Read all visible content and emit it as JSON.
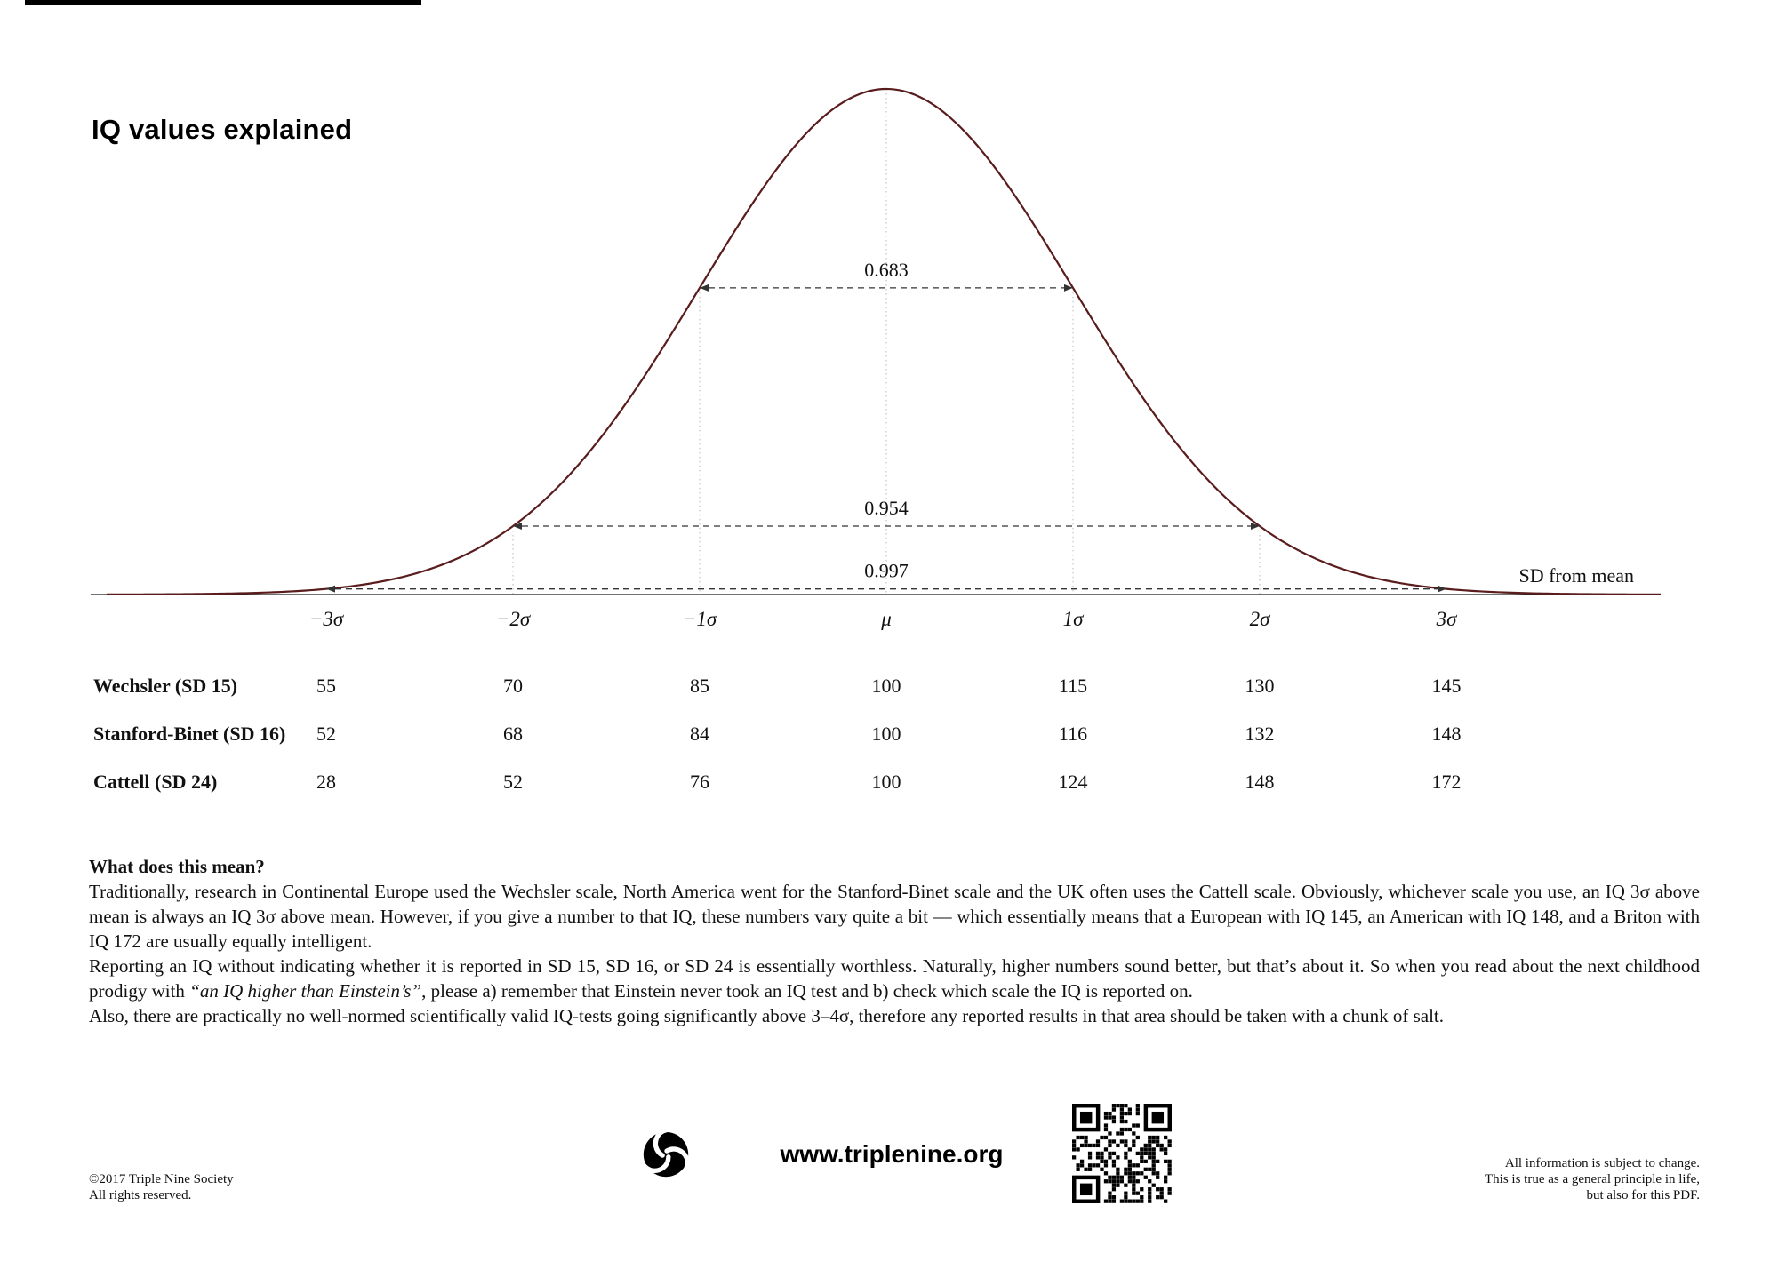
{
  "page": {
    "title": "IQ values explained"
  },
  "chart": {
    "curve_color": "#5a1c1c",
    "sd_axis_label": "SD from mean",
    "sigma_labels": [
      "−3σ",
      "−2σ",
      "−1σ",
      "μ",
      "1σ",
      "2σ",
      "3σ"
    ],
    "intervals": [
      {
        "label": "0.683",
        "sigma": 1
      },
      {
        "label": "0.954",
        "sigma": 2
      },
      {
        "label": "0.997",
        "sigma": 3
      }
    ]
  },
  "chart_data": {
    "type": "line",
    "title": "IQ values explained",
    "curve": "normal (Gaussian) distribution",
    "x_axis_label": "SD from mean",
    "x_tick_labels": [
      "−3σ",
      "−2σ",
      "−1σ",
      "μ",
      "1σ",
      "2σ",
      "3σ"
    ],
    "coverage_intervals": [
      {
        "range": "μ ± 1σ",
        "probability": 0.683
      },
      {
        "range": "μ ± 2σ",
        "probability": 0.954
      },
      {
        "range": "μ ± 3σ",
        "probability": 0.997
      }
    ],
    "table": {
      "columns": [
        "−3σ",
        "−2σ",
        "−1σ",
        "μ",
        "1σ",
        "2σ",
        "3σ"
      ],
      "rows": [
        {
          "label": "Wechsler (SD 15)",
          "values": [
            55,
            70,
            85,
            100,
            115,
            130,
            145
          ]
        },
        {
          "label": "Stanford-Binet (SD 16)",
          "values": [
            52,
            68,
            84,
            100,
            116,
            132,
            148
          ]
        },
        {
          "label": "Cattell (SD 24)",
          "values": [
            28,
            52,
            76,
            100,
            124,
            148,
            172
          ]
        }
      ]
    }
  },
  "table": {
    "rows": [
      {
        "label": "Wechsler (SD 15)",
        "values": [
          "55",
          "70",
          "85",
          "100",
          "115",
          "130",
          "145"
        ]
      },
      {
        "label": "Stanford-Binet (SD 16)",
        "values": [
          "52",
          "68",
          "84",
          "100",
          "116",
          "132",
          "148"
        ]
      },
      {
        "label": "Cattell (SD 24)",
        "values": [
          "28",
          "52",
          "76",
          "100",
          "124",
          "148",
          "172"
        ]
      }
    ]
  },
  "body": {
    "heading": "What does this mean?",
    "para1": "Traditionally, research in Continental Europe used the Wechsler scale, North America went for the Stanford-Binet scale and the UK often uses the Cattell scale. Obviously, whichever scale you use, an IQ 3σ above mean is always an IQ 3σ above mean. However, if you give a number to that IQ, these numbers vary quite a bit — which essentially means that a European with IQ 145, an American with IQ 148, and a Briton with IQ 172 are usually equally intelligent.",
    "para2_pre": "Reporting an IQ without indicating whether it is reported in SD 15, SD 16, or SD 24 is essentially worthless. Naturally, higher numbers sound better, but that’s about it. So when you read about the next childhood prodigy with ",
    "para2_italic": "“an IQ higher than Einstein’s”",
    "para2_post": ", please a) remember that Einstein never took an IQ test and b) check which scale the IQ is reported on.",
    "para3": "Also, there are practically no well-normed scientifically valid IQ-tests going significantly above 3–4σ, therefore any reported results in that area should be taken with a chunk of salt."
  },
  "footer": {
    "copyright_line1": "©2017 Triple Nine Society",
    "copyright_line2": "All rights reserved.",
    "website": "www.triplenine.org",
    "disclaimer_line1": "All information is subject to change.",
    "disclaimer_line2": "This is true as a general principle in life,",
    "disclaimer_line3": "but also for this PDF."
  }
}
